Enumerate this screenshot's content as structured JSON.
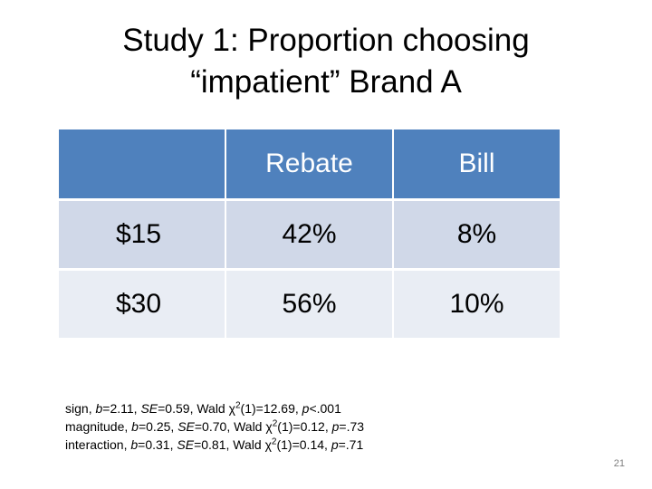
{
  "slide": {
    "title_line1": "Study 1: Proportion choosing",
    "title_line2": "“impatient” Brand A",
    "page_number": "21"
  },
  "table": {
    "columns": [
      "",
      "Rebate",
      "Bill"
    ],
    "rows": [
      {
        "label": "$15",
        "rebate": "42%",
        "bill": "8%"
      },
      {
        "label": "$30",
        "rebate": "56%",
        "bill": "10%"
      }
    ]
  },
  "stats": [
    {
      "term": "sign",
      "b_label": "b",
      "b_val": "=2.11",
      "se_label": "SE",
      "se_val": "=0.59",
      "wald_label": "Wald χ",
      "wald_exp": "2",
      "wald_val": "(1)=12.69",
      "p_label": "p",
      "p_val": "<.001"
    },
    {
      "term": "magnitude",
      "b_label": "b",
      "b_val": "=0.25",
      "se_label": "SE",
      "se_val": "=0.70",
      "wald_label": "Wald χ",
      "wald_exp": "2",
      "wald_val": "(1)=0.12",
      "p_label": "p",
      "p_val": "=.73"
    },
    {
      "term": "interaction",
      "b_label": "b",
      "b_val": "=0.31",
      "se_label": "SE",
      "se_val": "=0.81",
      "wald_label": "Wald χ",
      "wald_exp": "2",
      "wald_val": "(1)=0.14",
      "p_label": "p",
      "p_val": "=.71"
    }
  ]
}
